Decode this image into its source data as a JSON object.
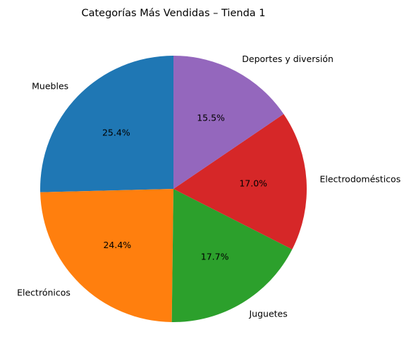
{
  "chart_data": {
    "type": "pie",
    "title": "Categorías Más Vendidas – Tienda 1",
    "start_angle_deg": 90,
    "direction": "counterclockwise",
    "slices": [
      {
        "label": "Muebles",
        "value": 25.4,
        "pct_label": "25.4%",
        "color": "#1f77b4"
      },
      {
        "label": "Electrónicos",
        "value": 24.4,
        "pct_label": "24.4%",
        "color": "#ff7f0e"
      },
      {
        "label": "Juguetes",
        "value": 17.7,
        "pct_label": "17.7%",
        "color": "#2ca02c"
      },
      {
        "label": "Electrodomésticos",
        "value": 17.0,
        "pct_label": "17.0%",
        "color": "#d62728"
      },
      {
        "label": "Deportes y diversión",
        "value": 15.5,
        "pct_label": "15.5%",
        "color": "#9467bd"
      }
    ]
  }
}
